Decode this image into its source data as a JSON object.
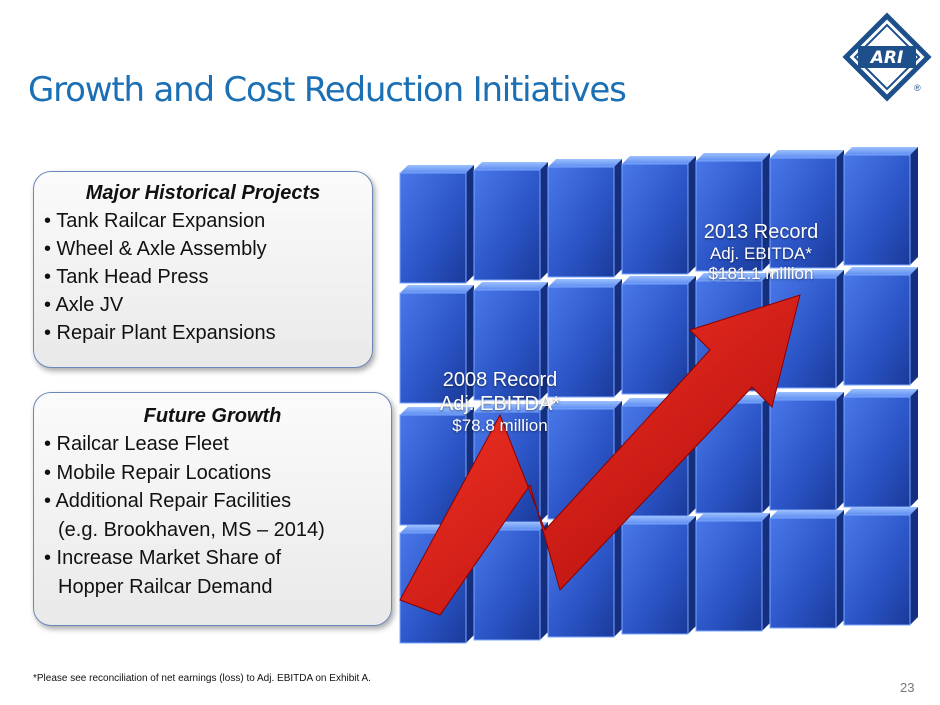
{
  "title": "Growth and Cost Reduction Initiatives",
  "logo": {
    "text": "ARI",
    "registered": "®"
  },
  "panel_historical": {
    "heading": "Major Historical Projects",
    "items": [
      "• Tank Railcar Expansion",
      "• Wheel & Axle Assembly",
      "• Tank Head Press",
      "• Axle JV",
      "• Repair Plant Expansions"
    ]
  },
  "panel_future": {
    "heading": "Future Growth",
    "items": [
      "• Railcar Lease Fleet",
      "• Mobile Repair Locations",
      "• Additional Repair Facilities",
      "(e.g. Brookhaven, MS – 2014)",
      "• Increase Market Share of",
      "Hopper Railcar Demand"
    ]
  },
  "callout_2008": {
    "line1": "2008 Record",
    "line2": "Adj. EBITDA*",
    "line3": "$78.8 million"
  },
  "callout_2013": {
    "line1": "2013 Record",
    "line2": "Adj. EBITDA*",
    "line3": "$181.1 million"
  },
  "footnote": "*Please see reconciliation of net earnings (loss) to Adj. EBITDA on Exhibit A.",
  "page_number": "23",
  "colors": {
    "title": "#1a6fb5",
    "cube": "#2c56c8",
    "arrow": "#d81818",
    "logo": "#1d4f8a"
  }
}
